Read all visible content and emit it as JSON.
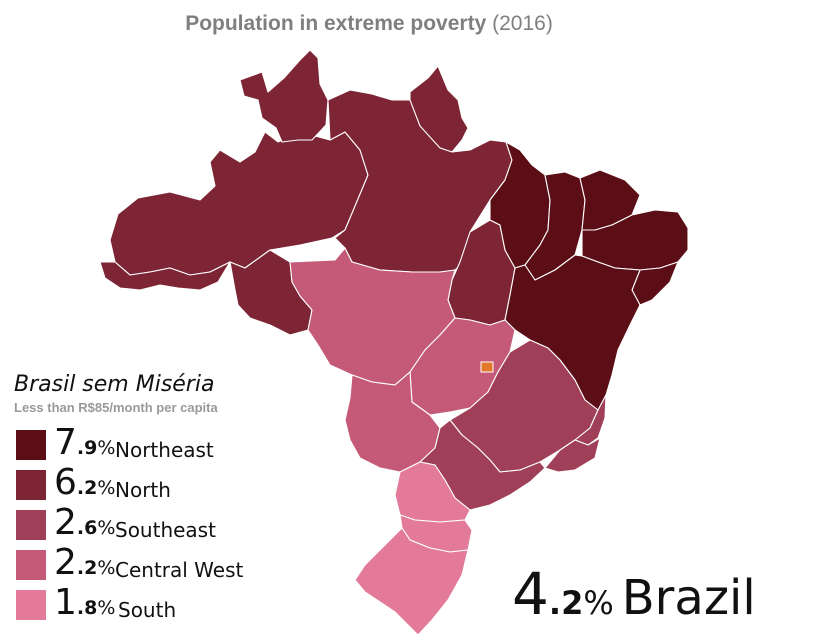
{
  "title": {
    "main": "Population in extreme poverty",
    "year": "(2016)"
  },
  "legend": {
    "title": "Brasil sem Miséria",
    "subtitle": "Less than R$85/month per capita",
    "items": [
      {
        "int": "7",
        "dec": ".9",
        "pct": "%",
        "region": "Northeast",
        "color": "#5c0e16"
      },
      {
        "int": "6",
        "dec": ".2",
        "pct": "%",
        "region": "North",
        "color": "#7d2535"
      },
      {
        "int": "2",
        "dec": ".6",
        "pct": "%",
        "region": "Southeast",
        "color": "#a04058"
      },
      {
        "int": "2",
        "dec": ".2",
        "pct": "%",
        "region": "Central West",
        "color": "#c45a78"
      },
      {
        "int": "1",
        "dec": ".8",
        "pct": "%",
        "region": "South",
        "color": "#e37a9a"
      }
    ]
  },
  "total": {
    "int": "4",
    "dec": ".2",
    "pct": "%",
    "name": "Brazil"
  },
  "map_colors": {
    "northeast": "#5c0e16",
    "north": "#7d2535",
    "southeast": "#a04058",
    "central_west": "#c45a78",
    "south": "#e37a9a",
    "capital_marker": "#e07a2a"
  }
}
